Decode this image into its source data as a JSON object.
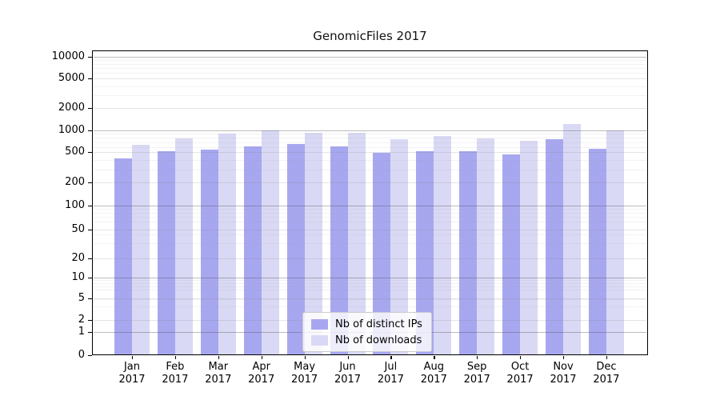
{
  "title": "GenomicFiles 2017",
  "year": "2017",
  "months": [
    "Jan",
    "Feb",
    "Mar",
    "Apr",
    "May",
    "Jun",
    "Jul",
    "Aug",
    "Sep",
    "Oct",
    "Nov",
    "Dec"
  ],
  "y_axis": {
    "tick_labels": [
      "0",
      "1",
      "2",
      "5",
      "10",
      "20",
      "50",
      "100",
      "200",
      "500",
      "1000",
      "2000",
      "5000",
      "10000"
    ]
  },
  "legend": {
    "items": [
      {
        "label": "Nb of distinct IPs",
        "color": "#a7a7f0"
      },
      {
        "label": "Nb of downloads",
        "color": "#d9d9f5"
      }
    ]
  },
  "colors": {
    "bar_dark": "#a7a7f0",
    "bar_light": "#d9d9f5",
    "axis": "#000000",
    "grid_major": "#c4c4c4",
    "grid_minor": "#ececec"
  },
  "chart_data": {
    "type": "bar",
    "title": "GenomicFiles 2017",
    "categories": [
      "Jan 2017",
      "Feb 2017",
      "Mar 2017",
      "Apr 2017",
      "May 2017",
      "Jun 2017",
      "Jul 2017",
      "Aug 2017",
      "Sep 2017",
      "Oct 2017",
      "Nov 2017",
      "Dec 2017"
    ],
    "series": [
      {
        "name": "Nb of distinct IPs",
        "color": "#a7a7f0",
        "values": [
          430,
          530,
          550,
          610,
          660,
          620,
          500,
          530,
          530,
          480,
          760,
          570
        ]
      },
      {
        "name": "Nb of downloads",
        "color": "#d9d9f5",
        "values": [
          650,
          790,
          910,
          1010,
          940,
          940,
          760,
          850,
          790,
          730,
          1230,
          1000
        ]
      }
    ],
    "xlabel": "",
    "ylabel": "",
    "yscale": "symlog",
    "yticks": [
      0,
      1,
      2,
      5,
      10,
      20,
      50,
      100,
      200,
      500,
      1000,
      2000,
      5000,
      10000
    ],
    "ylim": [
      0,
      12000
    ],
    "grid": true,
    "legend_position": "lower center"
  }
}
